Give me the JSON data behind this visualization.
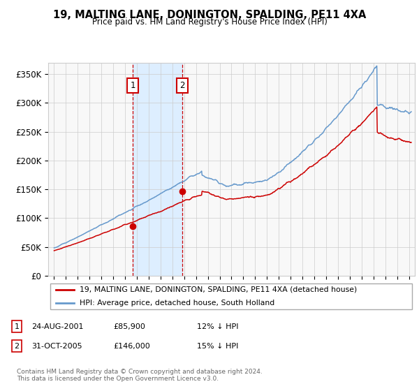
{
  "title": "19, MALTING LANE, DONINGTON, SPALDING, PE11 4XA",
  "subtitle": "Price paid vs. HM Land Registry's House Price Index (HPI)",
  "yticks": [
    0,
    50000,
    100000,
    150000,
    200000,
    250000,
    300000,
    350000
  ],
  "ytick_labels": [
    "£0",
    "£50K",
    "£100K",
    "£150K",
    "£200K",
    "£250K",
    "£300K",
    "£350K"
  ],
  "ylim": [
    0,
    370000
  ],
  "xlim_start": 1994.5,
  "xlim_end": 2025.5,
  "sale1_x": 2001.648,
  "sale1_y": 85900,
  "sale2_x": 2005.832,
  "sale2_y": 146000,
  "shading_color": "#ddeeff",
  "vline_color": "#cc0000",
  "hpi_color": "#6699cc",
  "price_color": "#cc0000",
  "grid_color": "#cccccc",
  "bg_color": "#f8f8f8",
  "legend_border_color": "#aaaaaa",
  "legend1_label": "19, MALTING LANE, DONINGTON, SPALDING, PE11 4XA (detached house)",
  "legend2_label": "HPI: Average price, detached house, South Holland",
  "table_rows": [
    {
      "num": "1",
      "date": "24-AUG-2001",
      "price": "£85,900",
      "pct": "12% ↓ HPI"
    },
    {
      "num": "2",
      "date": "31-OCT-2005",
      "price": "£146,000",
      "pct": "15% ↓ HPI"
    }
  ],
  "footer_text": "Contains HM Land Registry data © Crown copyright and database right 2024.\nThis data is licensed under the Open Government Licence v3.0."
}
